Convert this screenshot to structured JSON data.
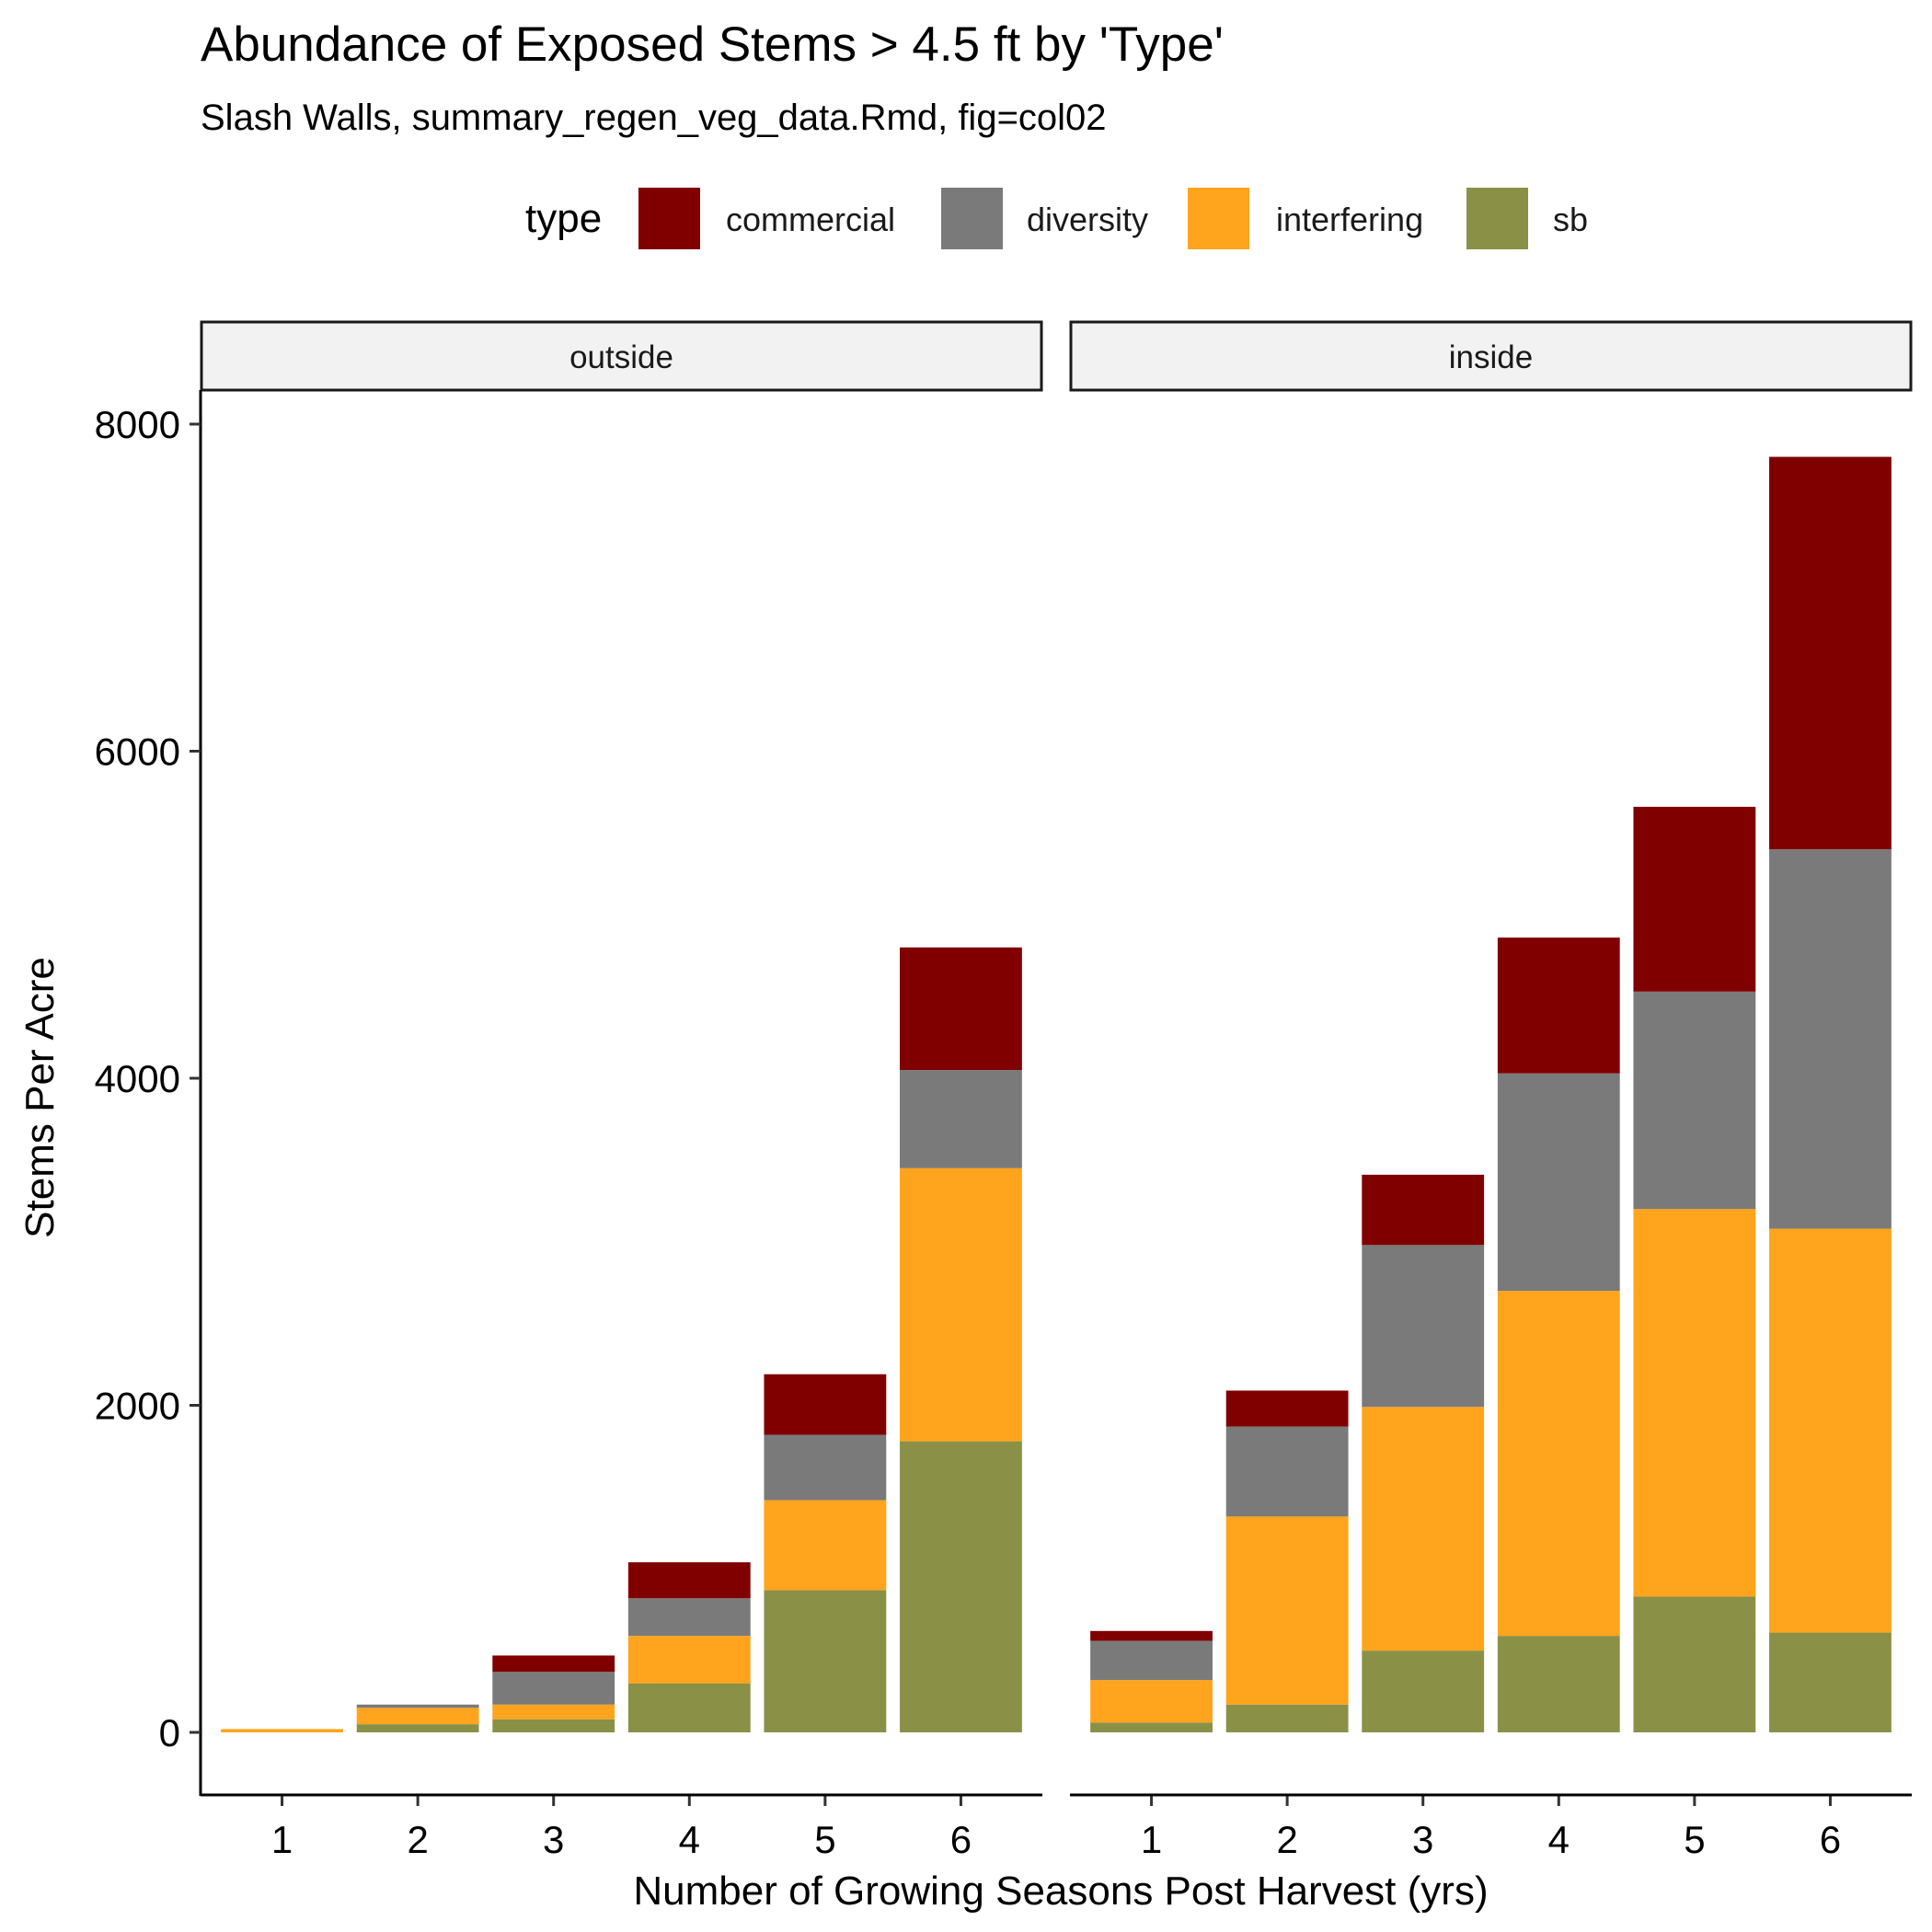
{
  "chart_data": {
    "type": "bar",
    "stacked": true,
    "title": "Abundance of Exposed Stems > 4.5 ft by 'Type'",
    "subtitle": "Slash Walls, summary_regen_veg_data.Rmd, fig=col02",
    "xlabel": "Number of Growing Seasons Post Harvest (yrs)",
    "ylabel": "Stems Per Acre",
    "ylim": [
      -400,
      8400
    ],
    "yticks": [
      "0",
      "2000",
      "4000",
      "6000",
      "8000"
    ],
    "ytick_values": [
      0,
      2000,
      4000,
      6000,
      8000
    ],
    "categories": [
      "1",
      "2",
      "3",
      "4",
      "5",
      "6"
    ],
    "legend": {
      "title": "type",
      "position": "top",
      "items": [
        {
          "label": "commercial",
          "color": "#800000"
        },
        {
          "label": "diversity",
          "color": "#7a7a7a"
        },
        {
          "label": "interfering",
          "color": "#ffa41c"
        },
        {
          "label": "sb",
          "color": "#8b9047"
        }
      ]
    },
    "panels": [
      {
        "name": "outside",
        "series": [
          {
            "name": "sb",
            "values": [
              0,
              50,
              80,
              300,
              870,
              1780
            ]
          },
          {
            "name": "interfering",
            "values": [
              20,
              100,
              90,
              290,
              550,
              1670
            ]
          },
          {
            "name": "diversity",
            "values": [
              0,
              20,
              200,
              230,
              400,
              600
            ]
          },
          {
            "name": "commercial",
            "values": [
              0,
              0,
              100,
              220,
              370,
              750
            ]
          }
        ]
      },
      {
        "name": "inside",
        "series": [
          {
            "name": "sb",
            "values": [
              60,
              170,
              500,
              590,
              830,
              610
            ]
          },
          {
            "name": "interfering",
            "values": [
              260,
              1150,
              1490,
              2110,
              2370,
              2470
            ]
          },
          {
            "name": "diversity",
            "values": [
              240,
              550,
              990,
              1330,
              1330,
              2320
            ]
          },
          {
            "name": "commercial",
            "values": [
              60,
              220,
              430,
              830,
              1130,
              2400
            ]
          }
        ]
      }
    ],
    "grid": false
  }
}
